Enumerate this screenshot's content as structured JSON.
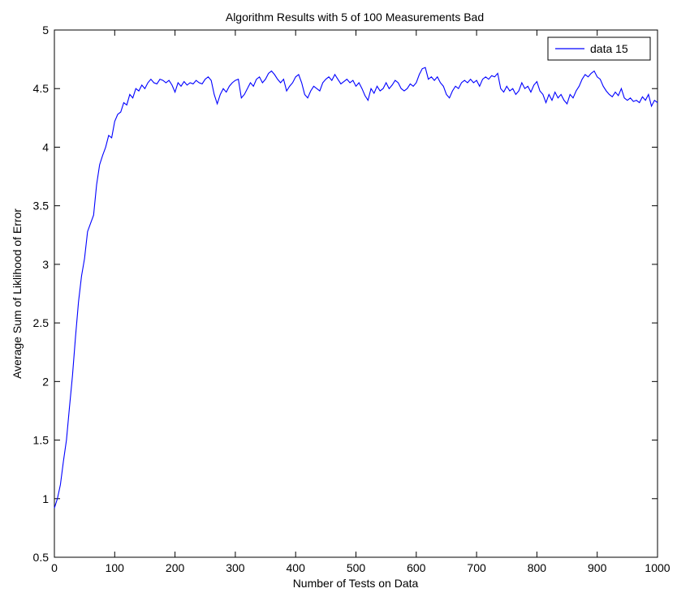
{
  "chart_data": {
    "type": "line",
    "title": "Algorithm Results with 5 of 100 Measurements Bad",
    "xlabel": "Number of Tests on Data",
    "ylabel": "Average Sum of Liklihood of Error",
    "xlim": [
      0,
      1000
    ],
    "ylim": [
      0.5,
      5
    ],
    "xticks": [
      0,
      100,
      200,
      300,
      400,
      500,
      600,
      700,
      800,
      900,
      1000
    ],
    "yticks": [
      0.5,
      1,
      1.5,
      2,
      2.5,
      3,
      3.5,
      4,
      4.5,
      5
    ],
    "grid": false,
    "legend_position": "top-right",
    "series": [
      {
        "name": "data 15",
        "color": "#0000ff",
        "points": [
          [
            0,
            0.92
          ],
          [
            5,
            1.0
          ],
          [
            10,
            1.12
          ],
          [
            15,
            1.32
          ],
          [
            20,
            1.5
          ],
          [
            25,
            1.78
          ],
          [
            30,
            2.05
          ],
          [
            35,
            2.38
          ],
          [
            40,
            2.68
          ],
          [
            45,
            2.9
          ],
          [
            50,
            3.05
          ],
          [
            55,
            3.28
          ],
          [
            60,
            3.35
          ],
          [
            65,
            3.42
          ],
          [
            70,
            3.68
          ],
          [
            75,
            3.85
          ],
          [
            80,
            3.93
          ],
          [
            85,
            4.0
          ],
          [
            90,
            4.1
          ],
          [
            95,
            4.08
          ],
          [
            100,
            4.22
          ],
          [
            105,
            4.28
          ],
          [
            110,
            4.3
          ],
          [
            115,
            4.38
          ],
          [
            120,
            4.36
          ],
          [
            125,
            4.45
          ],
          [
            130,
            4.42
          ],
          [
            135,
            4.5
          ],
          [
            140,
            4.48
          ],
          [
            145,
            4.53
          ],
          [
            150,
            4.5
          ],
          [
            155,
            4.55
          ],
          [
            160,
            4.58
          ],
          [
            165,
            4.55
          ],
          [
            170,
            4.54
          ],
          [
            175,
            4.58
          ],
          [
            180,
            4.57
          ],
          [
            185,
            4.55
          ],
          [
            190,
            4.57
          ],
          [
            195,
            4.53
          ],
          [
            200,
            4.47
          ],
          [
            205,
            4.55
          ],
          [
            210,
            4.52
          ],
          [
            215,
            4.56
          ],
          [
            220,
            4.53
          ],
          [
            225,
            4.55
          ],
          [
            230,
            4.54
          ],
          [
            235,
            4.57
          ],
          [
            240,
            4.55
          ],
          [
            245,
            4.54
          ],
          [
            250,
            4.58
          ],
          [
            255,
            4.6
          ],
          [
            260,
            4.57
          ],
          [
            265,
            4.45
          ],
          [
            270,
            4.37
          ],
          [
            275,
            4.45
          ],
          [
            280,
            4.5
          ],
          [
            285,
            4.47
          ],
          [
            290,
            4.52
          ],
          [
            295,
            4.55
          ],
          [
            300,
            4.57
          ],
          [
            305,
            4.58
          ],
          [
            310,
            4.42
          ],
          [
            315,
            4.45
          ],
          [
            320,
            4.5
          ],
          [
            325,
            4.55
          ],
          [
            330,
            4.52
          ],
          [
            335,
            4.58
          ],
          [
            340,
            4.6
          ],
          [
            345,
            4.55
          ],
          [
            350,
            4.58
          ],
          [
            355,
            4.63
          ],
          [
            360,
            4.65
          ],
          [
            365,
            4.62
          ],
          [
            370,
            4.58
          ],
          [
            375,
            4.55
          ],
          [
            380,
            4.58
          ],
          [
            385,
            4.48
          ],
          [
            390,
            4.52
          ],
          [
            395,
            4.55
          ],
          [
            400,
            4.6
          ],
          [
            405,
            4.62
          ],
          [
            410,
            4.55
          ],
          [
            415,
            4.45
          ],
          [
            420,
            4.42
          ],
          [
            425,
            4.48
          ],
          [
            430,
            4.52
          ],
          [
            435,
            4.5
          ],
          [
            440,
            4.48
          ],
          [
            445,
            4.55
          ],
          [
            450,
            4.58
          ],
          [
            455,
            4.6
          ],
          [
            460,
            4.57
          ],
          [
            465,
            4.62
          ],
          [
            470,
            4.58
          ],
          [
            475,
            4.54
          ],
          [
            480,
            4.56
          ],
          [
            485,
            4.58
          ],
          [
            490,
            4.55
          ],
          [
            495,
            4.57
          ],
          [
            500,
            4.52
          ],
          [
            505,
            4.55
          ],
          [
            510,
            4.5
          ],
          [
            515,
            4.44
          ],
          [
            520,
            4.4
          ],
          [
            525,
            4.5
          ],
          [
            530,
            4.46
          ],
          [
            535,
            4.52
          ],
          [
            540,
            4.48
          ],
          [
            545,
            4.5
          ],
          [
            550,
            4.55
          ],
          [
            555,
            4.5
          ],
          [
            560,
            4.53
          ],
          [
            565,
            4.57
          ],
          [
            570,
            4.55
          ],
          [
            575,
            4.5
          ],
          [
            580,
            4.48
          ],
          [
            585,
            4.5
          ],
          [
            590,
            4.54
          ],
          [
            595,
            4.52
          ],
          [
            600,
            4.55
          ],
          [
            605,
            4.62
          ],
          [
            610,
            4.67
          ],
          [
            615,
            4.68
          ],
          [
            620,
            4.58
          ],
          [
            625,
            4.6
          ],
          [
            630,
            4.57
          ],
          [
            635,
            4.6
          ],
          [
            640,
            4.55
          ],
          [
            645,
            4.52
          ],
          [
            650,
            4.45
          ],
          [
            655,
            4.42
          ],
          [
            660,
            4.48
          ],
          [
            665,
            4.52
          ],
          [
            670,
            4.5
          ],
          [
            675,
            4.55
          ],
          [
            680,
            4.57
          ],
          [
            685,
            4.55
          ],
          [
            690,
            4.58
          ],
          [
            695,
            4.55
          ],
          [
            700,
            4.57
          ],
          [
            705,
            4.52
          ],
          [
            710,
            4.58
          ],
          [
            715,
            4.6
          ],
          [
            720,
            4.58
          ],
          [
            725,
            4.61
          ],
          [
            730,
            4.6
          ],
          [
            735,
            4.63
          ],
          [
            740,
            4.5
          ],
          [
            745,
            4.47
          ],
          [
            750,
            4.52
          ],
          [
            755,
            4.48
          ],
          [
            760,
            4.5
          ],
          [
            765,
            4.45
          ],
          [
            770,
            4.48
          ],
          [
            775,
            4.55
          ],
          [
            780,
            4.5
          ],
          [
            785,
            4.52
          ],
          [
            790,
            4.47
          ],
          [
            795,
            4.53
          ],
          [
            800,
            4.56
          ],
          [
            805,
            4.48
          ],
          [
            810,
            4.45
          ],
          [
            815,
            4.38
          ],
          [
            820,
            4.45
          ],
          [
            825,
            4.4
          ],
          [
            830,
            4.47
          ],
          [
            835,
            4.42
          ],
          [
            840,
            4.45
          ],
          [
            845,
            4.4
          ],
          [
            850,
            4.37
          ],
          [
            855,
            4.45
          ],
          [
            860,
            4.42
          ],
          [
            865,
            4.48
          ],
          [
            870,
            4.52
          ],
          [
            875,
            4.58
          ],
          [
            880,
            4.62
          ],
          [
            885,
            4.6
          ],
          [
            890,
            4.63
          ],
          [
            895,
            4.65
          ],
          [
            900,
            4.6
          ],
          [
            905,
            4.58
          ],
          [
            910,
            4.52
          ],
          [
            915,
            4.48
          ],
          [
            920,
            4.45
          ],
          [
            925,
            4.43
          ],
          [
            930,
            4.47
          ],
          [
            935,
            4.44
          ],
          [
            940,
            4.5
          ],
          [
            945,
            4.42
          ],
          [
            950,
            4.4
          ],
          [
            955,
            4.42
          ],
          [
            960,
            4.39
          ],
          [
            965,
            4.4
          ],
          [
            970,
            4.38
          ],
          [
            975,
            4.43
          ],
          [
            980,
            4.4
          ],
          [
            985,
            4.45
          ],
          [
            990,
            4.35
          ],
          [
            995,
            4.4
          ],
          [
            1000,
            4.38
          ]
        ]
      }
    ]
  }
}
